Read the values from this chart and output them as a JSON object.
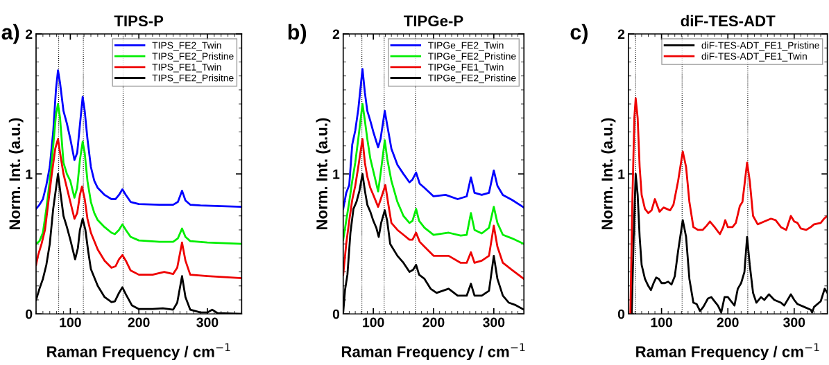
{
  "chart_data": [
    {
      "type": "line",
      "title": "TIPS-P",
      "xlabel": "Raman Frequency / cm$^{−1}$",
      "ylabel": "Norm. Int. (a.u.)",
      "annotations": [
        "a)"
      ],
      "xlim": [
        50,
        350
      ],
      "ylim": [
        0,
        2
      ],
      "xticks": [
        100,
        200,
        300
      ],
      "yticks": [
        0,
        1,
        2
      ],
      "grid": false,
      "legend": "top right",
      "marker": "none",
      "line_style": "solid",
      "ref_lines": [
        {
          "axis": "x",
          "value": 83,
          "line_style": "dotted",
          "color": "#000000"
        },
        {
          "axis": "x",
          "value": 119,
          "line_style": "dotted",
          "color": "#000000"
        },
        {
          "axis": "x",
          "value": 177,
          "line_style": "dotted",
          "color": "#000000"
        }
      ],
      "series": [
        {
          "name": "TIPS_FE2_Twin",
          "color": "#0000ff",
          "x": [
            50,
            55,
            60,
            65,
            70,
            75,
            79,
            82,
            85,
            90,
            95,
            100,
            106,
            110,
            114,
            118,
            121,
            125,
            130,
            135,
            140,
            150,
            160,
            166,
            171,
            176,
            181,
            188,
            200,
            230,
            250,
            257,
            263,
            268,
            275,
            290,
            320,
            350
          ],
          "values": [
            0.75,
            0.78,
            0.82,
            0.92,
            1.05,
            1.3,
            1.6,
            1.74,
            1.65,
            1.45,
            1.36,
            1.25,
            1.1,
            1.15,
            1.35,
            1.55,
            1.45,
            1.25,
            1.05,
            0.95,
            0.9,
            0.85,
            0.82,
            0.82,
            0.85,
            0.89,
            0.85,
            0.8,
            0.785,
            0.78,
            0.78,
            0.8,
            0.88,
            0.81,
            0.78,
            0.775,
            0.77,
            0.765
          ]
        },
        {
          "name": "TIPS_FE2_Pristine",
          "color": "#00ee00",
          "x": [
            50,
            55,
            60,
            65,
            70,
            75,
            79,
            82,
            85,
            90,
            95,
            100,
            106,
            110,
            114,
            118,
            121,
            125,
            130,
            135,
            140,
            150,
            160,
            165,
            171,
            176,
            181,
            188,
            200,
            230,
            250,
            257,
            263,
            268,
            275,
            300,
            350
          ],
          "values": [
            0.5,
            0.52,
            0.58,
            0.75,
            0.95,
            1.2,
            1.42,
            1.5,
            1.4,
            1.08,
            1.0,
            0.95,
            0.83,
            0.9,
            1.1,
            1.23,
            1.15,
            0.95,
            0.8,
            0.72,
            0.67,
            0.62,
            0.58,
            0.57,
            0.6,
            0.64,
            0.6,
            0.55,
            0.525,
            0.515,
            0.515,
            0.54,
            0.61,
            0.55,
            0.52,
            0.51,
            0.5
          ]
        },
        {
          "name": "TIPS_FE1_Twin",
          "color": "#ee0000",
          "x": [
            50,
            53,
            58,
            63,
            68,
            73,
            78,
            82,
            86,
            90,
            95,
            100,
            106,
            110,
            114,
            117,
            121,
            125,
            130,
            140,
            150,
            160,
            166,
            171,
            176,
            181,
            188,
            200,
            220,
            237,
            250,
            256,
            263,
            268,
            275,
            300,
            350
          ],
          "values": [
            0.35,
            0.42,
            0.5,
            0.6,
            0.8,
            1.0,
            1.18,
            1.25,
            1.12,
            1.0,
            0.9,
            0.8,
            0.68,
            0.72,
            0.85,
            0.91,
            0.82,
            0.68,
            0.58,
            0.46,
            0.38,
            0.33,
            0.34,
            0.39,
            0.42,
            0.38,
            0.31,
            0.28,
            0.28,
            0.3,
            0.285,
            0.33,
            0.51,
            0.38,
            0.28,
            0.27,
            0.255
          ]
        },
        {
          "name": "TIPS_FE2_Prisitne",
          "color": "#000000",
          "x": [
            50,
            55,
            60,
            65,
            70,
            75,
            82,
            86,
            90,
            95,
            100,
            107,
            111,
            114,
            118,
            122,
            126,
            130,
            140,
            150,
            160,
            165,
            171,
            176,
            181,
            190,
            200,
            220,
            235,
            250,
            256,
            263,
            268,
            275,
            290,
            300,
            307,
            315,
            350
          ],
          "values": [
            0.1,
            0.18,
            0.25,
            0.35,
            0.5,
            0.75,
            1.0,
            0.85,
            0.7,
            0.62,
            0.53,
            0.39,
            0.47,
            0.6,
            0.68,
            0.6,
            0.45,
            0.32,
            0.2,
            0.12,
            0.085,
            0.09,
            0.15,
            0.19,
            0.14,
            0.06,
            0.035,
            0.035,
            0.04,
            0.03,
            0.08,
            0.27,
            0.12,
            0.03,
            0.01,
            0.01,
            0.03,
            0.005,
            0.0
          ]
        }
      ]
    },
    {
      "type": "line",
      "title": "TIPGe-P",
      "xlabel": "Raman Frequency / cm$^{−1}$",
      "ylabel": "Norm. Int. (a.u.)",
      "annotations": [
        "b)"
      ],
      "xlim": [
        50,
        350
      ],
      "ylim": [
        0,
        2
      ],
      "xticks": [
        100,
        200,
        300
      ],
      "yticks": [
        0,
        1,
        2
      ],
      "grid": false,
      "legend": "top right",
      "marker": "none",
      "line_style": "solid",
      "ref_lines": [
        {
          "axis": "x",
          "value": 81,
          "line_style": "dotted",
          "color": "#000000"
        },
        {
          "axis": "x",
          "value": 118,
          "line_style": "dotted",
          "color": "#000000"
        },
        {
          "axis": "x",
          "value": 170,
          "line_style": "dotted",
          "color": "#000000"
        }
      ],
      "series": [
        {
          "name": "TIPGe_FE2_Twin",
          "color": "#0000ff",
          "x": [
            50,
            55,
            60,
            65,
            70,
            75,
            82,
            86,
            90,
            95,
            100,
            108,
            112,
            119,
            123,
            130,
            140,
            150,
            160,
            165,
            171,
            177,
            185,
            200,
            220,
            240,
            255,
            262,
            268,
            280,
            292,
            300,
            306,
            315,
            330,
            350
          ],
          "values": [
            0.75,
            0.865,
            0.92,
            1.21,
            1.31,
            1.46,
            1.75,
            1.58,
            1.45,
            1.38,
            1.3,
            1.19,
            1.25,
            1.45,
            1.35,
            1.18,
            1.065,
            1.0,
            0.94,
            0.96,
            1.01,
            0.93,
            0.9,
            0.84,
            0.85,
            0.82,
            0.84,
            0.975,
            0.865,
            0.85,
            0.865,
            1.025,
            0.915,
            0.85,
            0.815,
            0.76
          ]
        },
        {
          "name": "TIPGe_FE2_Pristine",
          "color": "#00ee00",
          "x": [
            50,
            55,
            60,
            65,
            70,
            75,
            82,
            86,
            90,
            95,
            100,
            108,
            112,
            119,
            123,
            130,
            140,
            150,
            160,
            165,
            171,
            176,
            185,
            200,
            225,
            245,
            255,
            262,
            268,
            280,
            292,
            300,
            306,
            315,
            330,
            350
          ],
          "values": [
            0.53,
            0.665,
            0.8,
            0.95,
            1.08,
            1.25,
            1.5,
            1.38,
            1.25,
            1.11,
            1.02,
            0.875,
            1.0,
            1.24,
            1.11,
            0.95,
            0.8,
            0.7,
            0.65,
            0.665,
            0.75,
            0.665,
            0.615,
            0.565,
            0.58,
            0.56,
            0.565,
            0.72,
            0.6,
            0.575,
            0.615,
            0.765,
            0.65,
            0.565,
            0.54,
            0.5
          ]
        },
        {
          "name": "TIPGe_FE1_Twin",
          "color": "#ee0000",
          "x": [
            50,
            55,
            60,
            65,
            70,
            75,
            82,
            86,
            90,
            95,
            100,
            108,
            112,
            120,
            125,
            130,
            140,
            150,
            160,
            165,
            171,
            177,
            185,
            200,
            225,
            245,
            255,
            262,
            268,
            280,
            292,
            300,
            306,
            315,
            330,
            350
          ],
          "values": [
            0.28,
            0.5,
            0.665,
            0.815,
            0.915,
            1.05,
            1.25,
            1.08,
            0.98,
            0.9,
            0.85,
            0.765,
            0.815,
            0.92,
            0.78,
            0.65,
            0.6,
            0.565,
            0.53,
            0.53,
            0.58,
            0.515,
            0.48,
            0.415,
            0.415,
            0.365,
            0.365,
            0.44,
            0.365,
            0.38,
            0.415,
            0.63,
            0.48,
            0.365,
            0.315,
            0.25
          ]
        },
        {
          "name": "TIPGe_FE2_Pristine",
          "color": "#000000",
          "x": [
            50,
            53,
            57,
            62,
            67,
            72,
            77,
            82,
            86,
            90,
            95,
            100,
            105,
            109,
            113,
            119,
            123,
            128,
            140,
            150,
            160,
            166,
            171,
            176,
            185,
            195,
            205,
            225,
            240,
            255,
            262,
            268,
            280,
            292,
            300,
            306,
            315,
            325,
            335,
            350
          ],
          "values": [
            0.01,
            0.17,
            0.28,
            0.58,
            0.75,
            0.8,
            0.88,
            1.0,
            0.88,
            0.78,
            0.73,
            0.665,
            0.615,
            0.55,
            0.65,
            0.74,
            0.665,
            0.5,
            0.415,
            0.365,
            0.3,
            0.315,
            0.35,
            0.28,
            0.25,
            0.18,
            0.15,
            0.18,
            0.13,
            0.13,
            0.215,
            0.13,
            0.13,
            0.165,
            0.415,
            0.25,
            0.13,
            0.08,
            0.065,
            0.03
          ]
        }
      ]
    },
    {
      "type": "line",
      "title": "diF-TES-ADT",
      "xlabel": "Raman Frequency / cm$^{−1}$",
      "ylabel": "Norm. Int. (a.u.)",
      "annotations": [
        "c)"
      ],
      "xlim": [
        50,
        350
      ],
      "ylim": [
        0,
        2
      ],
      "xticks": [
        100,
        200,
        300
      ],
      "yticks": [
        0,
        1,
        2
      ],
      "grid": false,
      "legend": "top right",
      "marker": "none",
      "line_style": "solid",
      "ref_lines": [
        {
          "axis": "x",
          "value": 61,
          "line_style": "dotted",
          "color": "#000000"
        },
        {
          "axis": "x",
          "value": 131,
          "line_style": "dotted",
          "color": "#000000"
        },
        {
          "axis": "x",
          "value": 230,
          "line_style": "dotted",
          "color": "#000000"
        }
      ],
      "series": [
        {
          "name": "diF-TES-ADT_FE1_Pristine",
          "color": "#000000",
          "x": [
            55,
            58,
            61,
            64,
            67,
            70,
            75,
            80,
            84,
            88,
            92,
            96,
            100,
            105,
            110,
            115,
            120,
            125,
            132,
            137,
            142,
            148,
            153,
            158,
            163,
            170,
            175,
            180,
            185,
            190,
            195,
            200,
            205,
            210,
            215,
            220,
            225,
            229,
            233,
            238,
            243,
            250,
            255,
            262,
            270,
            280,
            285,
            295,
            300,
            305,
            315,
            325,
            327,
            330,
            340,
            346,
            350
          ],
          "values": [
            0.0,
            0.55,
            1.0,
            0.85,
            0.55,
            0.35,
            0.25,
            0.2,
            0.17,
            0.22,
            0.26,
            0.25,
            0.22,
            0.22,
            0.23,
            0.21,
            0.27,
            0.45,
            0.67,
            0.55,
            0.25,
            0.08,
            0.07,
            0.02,
            0.05,
            0.11,
            0.12,
            0.09,
            0.06,
            0.01,
            0.12,
            0.12,
            0.09,
            0.06,
            0.18,
            0.22,
            0.3,
            0.55,
            0.35,
            0.15,
            0.08,
            0.12,
            0.1,
            0.14,
            0.1,
            0.08,
            0.06,
            0.14,
            0.1,
            0.07,
            0.05,
            0.03,
            0.01,
            0.05,
            0.09,
            0.18,
            0.15
          ]
        },
        {
          "name": "diF-TES-ADT_FE1_Twin",
          "color": "#ee0000",
          "x": [
            53,
            56,
            59,
            61,
            64,
            67,
            70,
            75,
            80,
            85,
            90,
            93,
            97,
            103,
            108,
            113,
            118,
            125,
            132,
            137,
            142,
            148,
            155,
            162,
            168,
            173,
            180,
            188,
            193,
            196,
            200,
            207,
            212,
            218,
            222,
            229,
            233,
            238,
            245,
            255,
            265,
            272,
            280,
            288,
            295,
            300,
            305,
            310,
            318,
            325,
            330,
            340,
            345,
            350
          ],
          "values": [
            0.0,
            0.8,
            1.4,
            1.54,
            1.4,
            1.05,
            0.85,
            0.75,
            0.72,
            0.74,
            0.82,
            0.78,
            0.73,
            0.76,
            0.75,
            0.74,
            0.78,
            0.95,
            1.16,
            1.05,
            0.8,
            0.62,
            0.6,
            0.6,
            0.63,
            0.66,
            0.62,
            0.57,
            0.62,
            0.67,
            0.62,
            0.62,
            0.65,
            0.77,
            0.8,
            1.08,
            0.95,
            0.7,
            0.64,
            0.66,
            0.68,
            0.67,
            0.62,
            0.6,
            0.7,
            0.66,
            0.65,
            0.61,
            0.6,
            0.62,
            0.64,
            0.65,
            0.68,
            0.7
          ]
        }
      ]
    }
  ]
}
